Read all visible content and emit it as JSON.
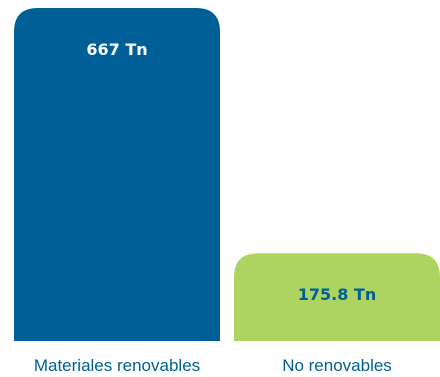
{
  "chart_data": {
    "type": "bar",
    "categories": [
      "Materiales renovables",
      "No renovables"
    ],
    "values": [
      667,
      175.8
    ],
    "data_labels": [
      "667 Tn",
      "175.8 Tn"
    ],
    "colors": [
      "#005f96",
      "#add360"
    ],
    "label_colors": [
      "#ffffff",
      "#005f96"
    ],
    "category_label_color": "#005f96",
    "ylim": [
      0,
      667
    ],
    "grid": false,
    "title": "",
    "xlabel": "",
    "ylabel": ""
  }
}
